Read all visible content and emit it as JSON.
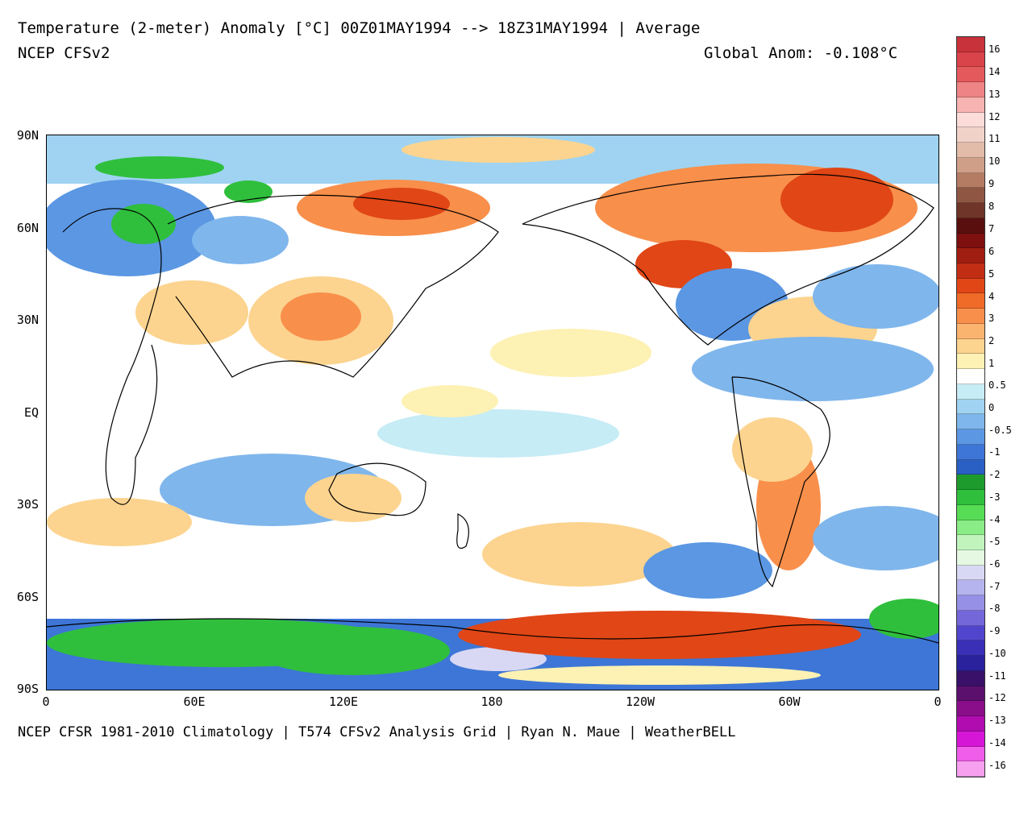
{
  "header": {
    "title": "Temperature (2-meter) Anomaly  [°C] 00Z01MAY1994 --> 18Z31MAY1994 | Average",
    "model": "NCEP CFSv2",
    "global_anomaly": "Global Anom: -0.108°C"
  },
  "footer": {
    "credits": "NCEP CFSR 1981-2010 Climatology | T574 CFSv2 Analysis Grid | Ryan N. Maue | WeatherBELL"
  },
  "axes": {
    "lat_labels": [
      "90N",
      "60N",
      "30N",
      "EQ",
      "30S",
      "60S",
      "90S"
    ],
    "lon_labels": [
      "0",
      "60E",
      "120E",
      "180",
      "120W",
      "60W",
      "0"
    ]
  },
  "colorbar": {
    "labels": [
      "16",
      "14",
      "13",
      "12",
      "11",
      "10",
      "9",
      "8",
      "7",
      "6",
      "5",
      "4",
      "3",
      "2",
      "1",
      "0.5",
      "0",
      "-0.5",
      "-1",
      "-2",
      "-3",
      "-4",
      "-5",
      "-6",
      "-7",
      "-8",
      "-9",
      "-10",
      "-11",
      "-12",
      "-13",
      "-14",
      "-16"
    ],
    "colors": [
      "#c8323a",
      "#d9444a",
      "#e45a5c",
      "#ee8485",
      "#f6b3b1",
      "#fbdcd8",
      "#f1d2c8",
      "#e2bba9",
      "#cf9f87",
      "#b47c63",
      "#8f5643",
      "#6e3528",
      "#5a0f0f",
      "#7e1010",
      "#a01d12",
      "#c22e14",
      "#e04616",
      "#f06a28",
      "#f88f4b",
      "#fbb46f",
      "#fcd48f",
      "#fdf1b4",
      "#ffffff",
      "#c6ecf5",
      "#9fd3f1",
      "#7fb6ec",
      "#5b97e3",
      "#3d76d6",
      "#2a5fc4",
      "#1d9b2c",
      "#2fbf3c",
      "#57dd55",
      "#8aec86",
      "#c0f4bc",
      "#e4f8e2",
      "#d8d8f4",
      "#b6b4ef",
      "#9690e6",
      "#7467da",
      "#5245cd",
      "#3a30b8",
      "#2a229c",
      "#3a1168",
      "#5c106e",
      "#8a0e8a",
      "#b00cb0",
      "#d616d6",
      "#ef5de9",
      "#f7a0f0"
    ]
  },
  "map": {
    "colors": {
      "warm1": "#fdf1b4",
      "warm2": "#fcd48f",
      "warm3": "#f88f4b",
      "warm4": "#e04616",
      "cool1": "#c6ecf5",
      "cool2": "#7fb6ec",
      "cool3": "#3d76d6",
      "green": "#2fbf3c",
      "lightgreen": "#8aec86",
      "violet": "#d8d8f4"
    }
  }
}
